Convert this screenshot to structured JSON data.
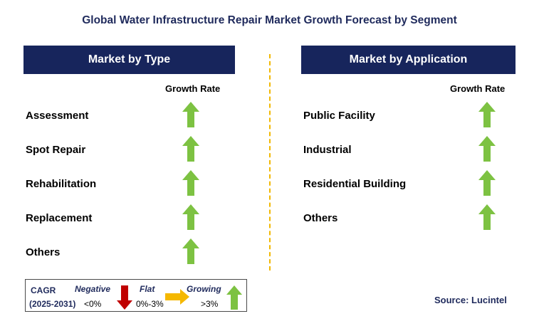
{
  "title": "Global Water Infrastructure Repair Market Growth Forecast by Segment",
  "left_panel": {
    "header": "Market by Type",
    "growth_label": "Growth Rate",
    "items": [
      {
        "label": "Assessment",
        "trend": "growing"
      },
      {
        "label": "Spot Repair",
        "trend": "growing"
      },
      {
        "label": "Rehabilitation",
        "trend": "growing"
      },
      {
        "label": "Replacement",
        "trend": "growing"
      },
      {
        "label": "Others",
        "trend": "growing"
      }
    ]
  },
  "right_panel": {
    "header": "Market by Application",
    "growth_label": "Growth Rate",
    "items": [
      {
        "label": "Public Facility",
        "trend": "growing"
      },
      {
        "label": "Industrial",
        "trend": "growing"
      },
      {
        "label": "Residential Building",
        "trend": "growing"
      },
      {
        "label": "Others",
        "trend": "growing"
      }
    ]
  },
  "legend": {
    "cagr_label": "CAGR",
    "period": "(2025-2031)",
    "negative": {
      "label": "Negative",
      "range": "<0%",
      "icon": "red-down-arrow-icon"
    },
    "flat": {
      "label": "Flat",
      "range": "0%-3%",
      "icon": "yellow-right-arrow-icon"
    },
    "growing": {
      "label": "Growing",
      "range": ">3%",
      "icon": "green-up-arrow-icon"
    }
  },
  "source": "Source: Lucintel",
  "colors": {
    "header_bg": "#17255c",
    "divider": "#f2b800",
    "growing": "#7dc242",
    "flat": "#f5b800",
    "negative": "#c00000"
  }
}
